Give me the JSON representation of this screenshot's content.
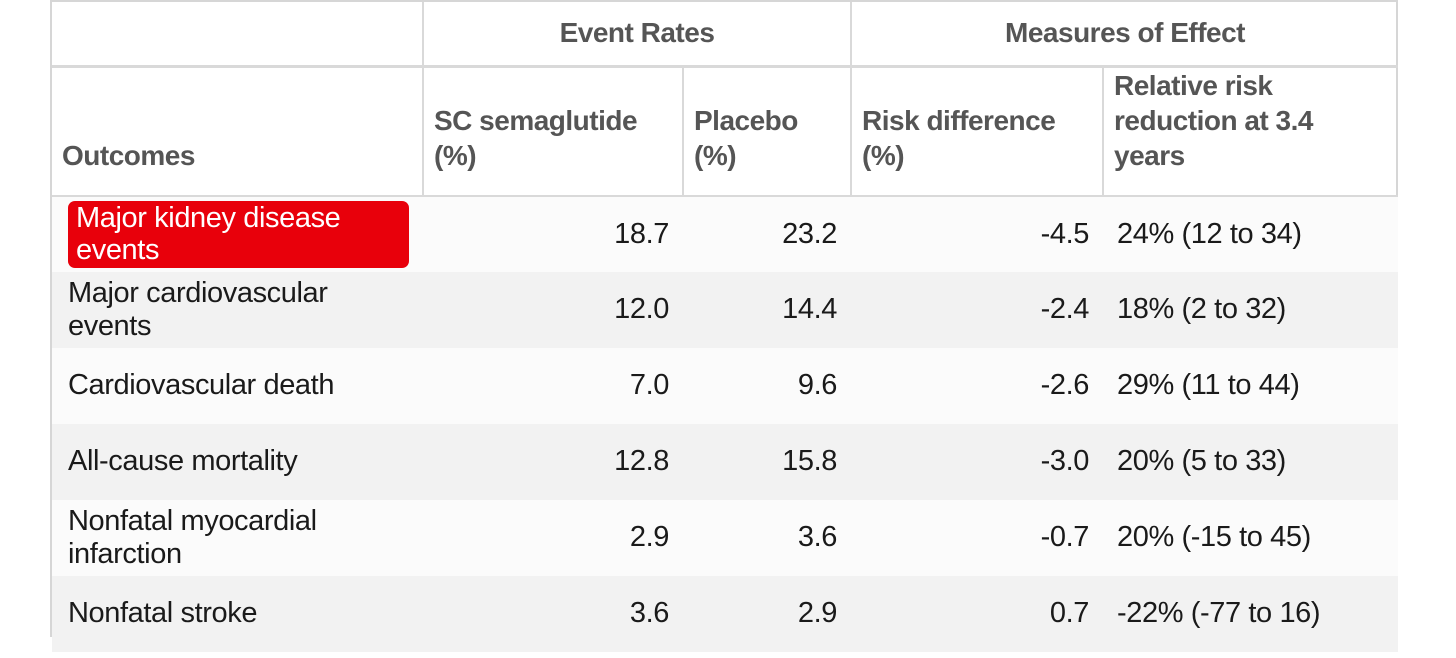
{
  "header": {
    "group_event_rates": "Event Rates",
    "group_measures": "Measures of Effect",
    "col_outcomes": "Outcomes",
    "col_semaglutide": "SC semaglutide (%)",
    "col_placebo": "Placebo (%)",
    "col_risk_difference": "Risk difference (%)",
    "col_rrr_line1": "Relative risk",
    "col_rrr_line2": "reduction at 3.4 years"
  },
  "rows": [
    {
      "outcome": "Major kidney disease events",
      "semaglutide": "18.7",
      "placebo": "23.2",
      "risk_difference": "-4.5",
      "rrr": "24% (12 to 34)",
      "highlighted": true
    },
    {
      "outcome": "Major cardiovascular events",
      "semaglutide": "12.0",
      "placebo": "14.4",
      "risk_difference": "-2.4",
      "rrr": "18% (2 to 32)"
    },
    {
      "outcome": "Cardiovascular death",
      "semaglutide": "7.0",
      "placebo": "9.6",
      "risk_difference": "-2.6",
      "rrr": "29% (11 to 44)"
    },
    {
      "outcome": "All-cause mortality",
      "semaglutide": "12.8",
      "placebo": "15.8",
      "risk_difference": "-3.0",
      "rrr": "20% (5 to 33)"
    },
    {
      "outcome": "Nonfatal myocardial infarction",
      "semaglutide": "2.9",
      "placebo": "3.6",
      "risk_difference": "-0.7",
      "rrr": "20% (-15 to 45)"
    },
    {
      "outcome": "Nonfatal stroke",
      "semaglutide": "3.6",
      "placebo": "2.9",
      "risk_difference": "0.7",
      "rrr": "-22% (-77 to 16)"
    }
  ],
  "colors": {
    "highlight_background": "#e8000b",
    "highlight_text": "#ffffff",
    "header_text": "#555555",
    "row_alt_background": "#f2f2f2"
  }
}
